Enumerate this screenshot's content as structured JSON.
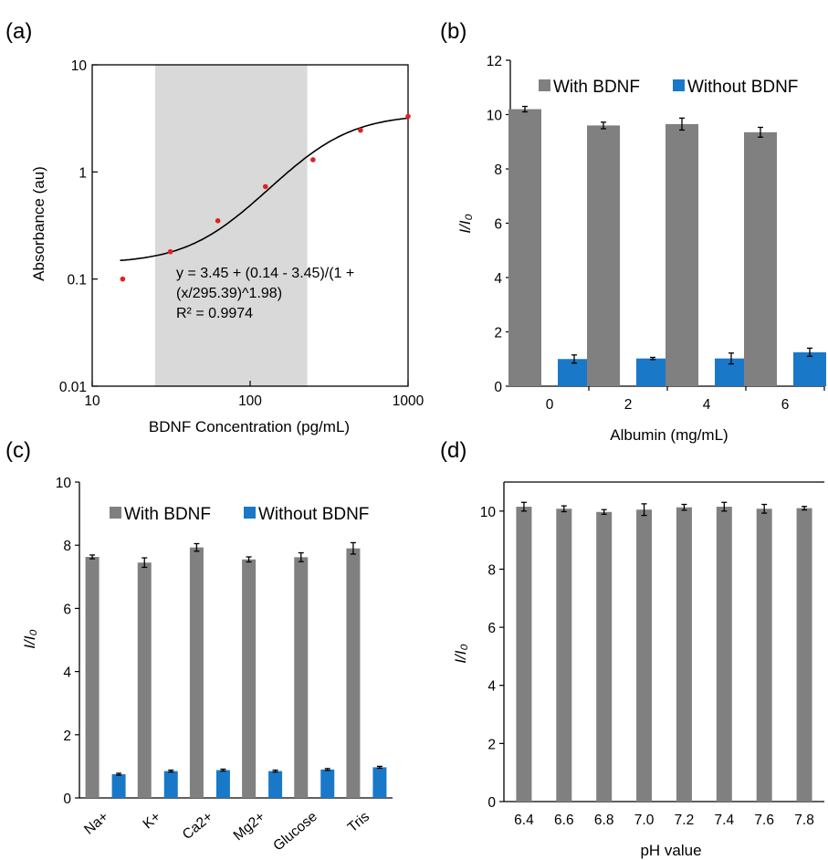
{
  "colors": {
    "with_bdnf": "#808080",
    "without_bdnf": "#1a78c8",
    "points": "#e02020",
    "shade": "#d9d9d9",
    "axis": "#000000"
  },
  "chart_data": [
    {
      "panel": "(a)",
      "type": "scatter",
      "xscale": "log",
      "yscale": "log",
      "xlabel": "BDNF Concentration (pg/mL)",
      "ylabel": "Absorbance (au)",
      "xlim": [
        10,
        1000
      ],
      "ylim": [
        0.01,
        10
      ],
      "xticks": [
        "10",
        "100",
        "1000"
      ],
      "yticks": [
        "0.01",
        "0.1",
        "1",
        "10"
      ],
      "shaded_range": [
        25,
        230
      ],
      "points": [
        {
          "x": 15.6,
          "y": 0.1
        },
        {
          "x": 31.25,
          "y": 0.18
        },
        {
          "x": 62.5,
          "y": 0.35
        },
        {
          "x": 125,
          "y": 0.73
        },
        {
          "x": 250,
          "y": 1.3
        },
        {
          "x": 500,
          "y": 2.45
        },
        {
          "x": 1000,
          "y": 3.3
        }
      ],
      "fit": {
        "top": 3.45,
        "bottom": 0.14,
        "ec50": 295.39,
        "hill": 1.98,
        "x_from": 15
      },
      "equation_lines": [
        "y = 3.45 + (0.14 - 3.45)/(1 +",
        "(x/295.39)^1.98)",
        "R² =  0.9974"
      ]
    },
    {
      "panel": "(b)",
      "type": "bar",
      "xlabel": "Albumin (mg/mL)",
      "ylabel": "I/I₀",
      "ylim": [
        0,
        12
      ],
      "yticks": [
        "0",
        "2",
        "4",
        "6",
        "8",
        "10",
        "12"
      ],
      "categories": [
        "0",
        "2",
        "4",
        "6"
      ],
      "legend": "top",
      "series": [
        {
          "name": "With BDNF",
          "values": [
            10.2,
            9.6,
            9.65,
            9.35
          ],
          "errors": [
            0.1,
            0.12,
            0.22,
            0.18
          ]
        },
        {
          "name": "Without BDNF",
          "values": [
            1.0,
            1.02,
            1.02,
            1.25
          ],
          "errors": [
            0.15,
            0.04,
            0.2,
            0.15
          ]
        }
      ]
    },
    {
      "panel": "(c)",
      "type": "bar",
      "xlabel": "",
      "ylabel": "I/I₀",
      "ylim": [
        0,
        10
      ],
      "yticks": [
        "0",
        "2",
        "4",
        "6",
        "8",
        "10"
      ],
      "categories": [
        "Na+",
        "K+",
        "Ca2+",
        "Mg2+",
        "Glucose",
        "Tris"
      ],
      "legend": "top",
      "series": [
        {
          "name": "With BDNF",
          "values": [
            7.63,
            7.45,
            7.93,
            7.55,
            7.62,
            7.9
          ],
          "errors": [
            0.06,
            0.15,
            0.12,
            0.08,
            0.14,
            0.18
          ]
        },
        {
          "name": "Without BDNF",
          "values": [
            0.75,
            0.85,
            0.88,
            0.85,
            0.9,
            0.97
          ],
          "errors": [
            0.03,
            0.03,
            0.03,
            0.03,
            0.03,
            0.03
          ]
        }
      ]
    },
    {
      "panel": "(d)",
      "type": "bar",
      "xlabel": "pH value",
      "ylabel": "I/I₀",
      "ylim": [
        0,
        11
      ],
      "yticks": [
        "0",
        "2",
        "4",
        "6",
        "8",
        "10"
      ],
      "categories": [
        "6.4",
        "6.6",
        "6.8",
        "7.0",
        "7.2",
        "7.4",
        "7.6",
        "7.8"
      ],
      "series": [
        {
          "values": [
            10.15,
            10.08,
            9.97,
            10.05,
            10.13,
            10.15,
            10.08,
            10.1
          ],
          "errors": [
            0.15,
            0.1,
            0.08,
            0.2,
            0.1,
            0.15,
            0.15,
            0.06
          ]
        }
      ]
    }
  ]
}
